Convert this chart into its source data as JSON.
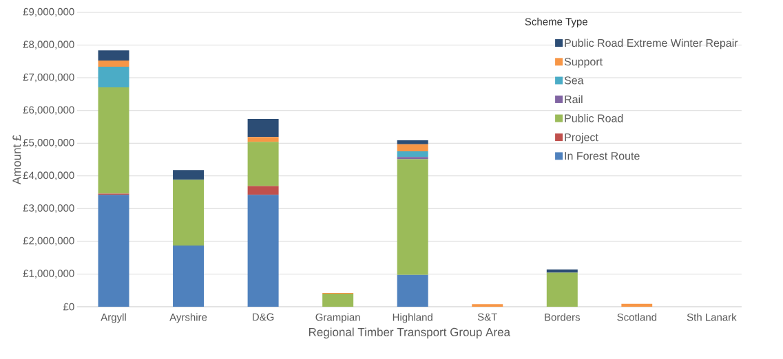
{
  "chart_data": {
    "type": "bar",
    "stacked": true,
    "xlabel": "Regional Timber Transport Group Area",
    "ylabel": "Amount £",
    "legend_title": "Scheme Type",
    "legend": "top right",
    "grid": "y",
    "categories": [
      "Argyll",
      "Ayrshire",
      "D&G",
      "Grampian",
      "Highland",
      "S&T",
      "Borders",
      "Scotland",
      "Sth Lanark"
    ],
    "ylim": [
      0,
      9000000
    ],
    "yticks": [
      {
        "value": 0,
        "label": "£0"
      },
      {
        "value": 1000000,
        "label": "£1,000,000"
      },
      {
        "value": 2000000,
        "label": "£2,000,000"
      },
      {
        "value": 3000000,
        "label": "£3,000,000"
      },
      {
        "value": 4000000,
        "label": "£4,000,000"
      },
      {
        "value": 5000000,
        "label": "£5,000,000"
      },
      {
        "value": 6000000,
        "label": "£6,000,000"
      },
      {
        "value": 7000000,
        "label": "£7,000,000"
      },
      {
        "value": 8000000,
        "label": "£8,000,000"
      },
      {
        "value": 9000000,
        "label": "£9,000,000"
      }
    ],
    "series": [
      {
        "name": "In Forest Route",
        "color": "#4f81bd",
        "values": [
          3420000,
          1870000,
          3420000,
          null,
          970000,
          null,
          null,
          null,
          null
        ]
      },
      {
        "name": "Project",
        "color": "#c0504d",
        "values": [
          40000,
          null,
          270000,
          null,
          null,
          null,
          null,
          null,
          null
        ]
      },
      {
        "name": "Public Road",
        "color": "#9bbb59",
        "values": [
          3250000,
          2010000,
          1350000,
          400000,
          3540000,
          null,
          1040000,
          null,
          null
        ]
      },
      {
        "name": "Rail",
        "color": "#8064a2",
        "values": [
          null,
          null,
          null,
          null,
          70000,
          null,
          null,
          null,
          null
        ]
      },
      {
        "name": "Sea",
        "color": "#4bacc6",
        "values": [
          630000,
          null,
          null,
          null,
          170000,
          null,
          null,
          null,
          null
        ]
      },
      {
        "name": "Support",
        "color": "#f79646",
        "values": [
          190000,
          null,
          150000,
          20000,
          220000,
          80000,
          null,
          90000,
          null
        ]
      },
      {
        "name": "Public Road  Extreme Winter  Repair",
        "color": "#2c4d75",
        "values": [
          310000,
          300000,
          550000,
          null,
          120000,
          null,
          100000,
          null,
          null
        ]
      }
    ]
  }
}
